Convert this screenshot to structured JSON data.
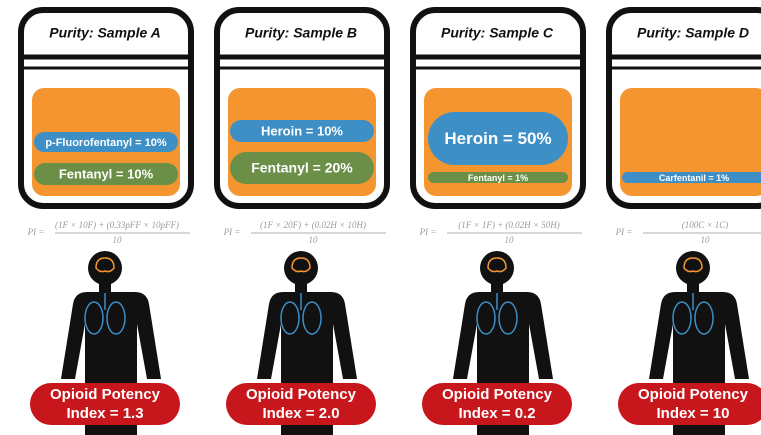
{
  "panels": [
    {
      "title": "Purity: Sample A",
      "pills": [
        "p-Fluorofentanyl = 10%",
        "Fentanyl = 10%"
      ],
      "formula": {
        "lhs": "PI =",
        "numerator": "(1F × 10F) + (0.33pFF × 10pFF)",
        "denominator": "10"
      },
      "potency": [
        "Opioid Potency",
        "Index = 1.3"
      ]
    },
    {
      "title": "Purity: Sample B",
      "pills": [
        "Heroin = 10%",
        "Fentanyl = 20%"
      ],
      "formula": {
        "lhs": "PI =",
        "numerator": "(1F × 20F) + (0.02H × 10H)",
        "denominator": "10"
      },
      "potency": [
        "Opioid Potency",
        "Index = 2.0"
      ]
    },
    {
      "title": "Purity: Sample C",
      "pills": [
        "Heroin = 50%",
        "Fentanyl = 1%"
      ],
      "formula": {
        "lhs": "PI =",
        "numerator": "(1F × 1F) + (0.02H × 50H)",
        "denominator": "10"
      },
      "potency": [
        "Opioid Potency",
        "Index = 0.2"
      ]
    },
    {
      "title": "Purity: Sample D",
      "pills": [
        "Carfentanil = 1%"
      ],
      "formula": {
        "lhs": "PI =",
        "numerator": "(100C × 1C)",
        "denominator": "10"
      },
      "potency": [
        "Opioid Potency",
        "Index = 10"
      ]
    }
  ]
}
